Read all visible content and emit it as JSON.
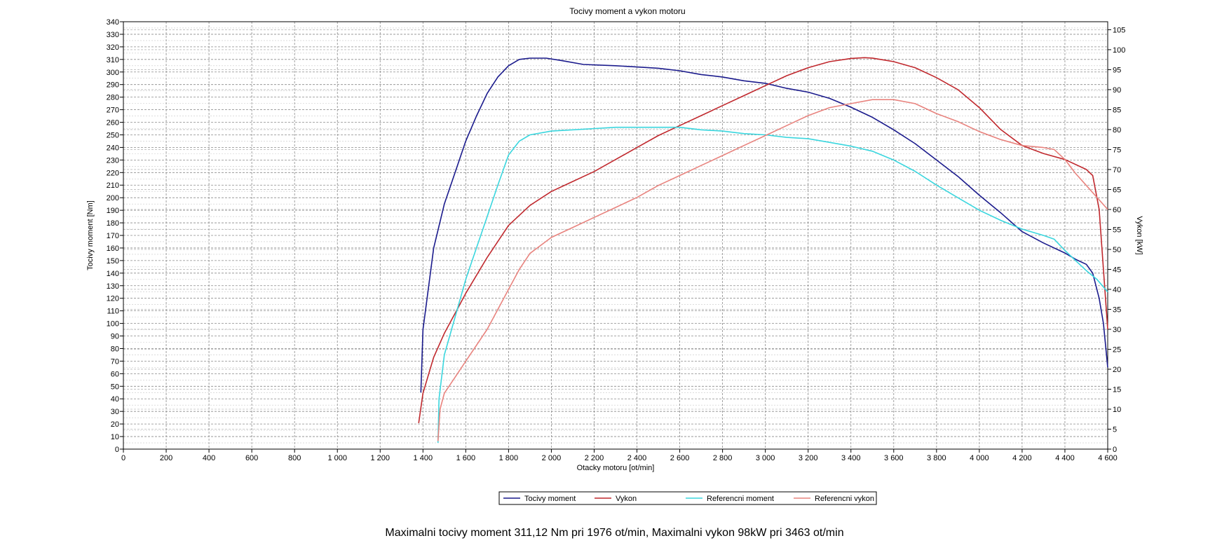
{
  "chart_data": {
    "type": "line",
    "title": "Tocivy moment a vykon motoru",
    "xlabel": "Otacky motoru [ot/min]",
    "ylabel": "Tocivy moment [Nm]",
    "y2label": "Vykon [kW]",
    "xlim": [
      0,
      4600
    ],
    "ylim": [
      0,
      340
    ],
    "y2lim": [
      0,
      107
    ],
    "x_ticks": [
      0,
      200,
      400,
      600,
      800,
      1000,
      1200,
      1400,
      1600,
      1800,
      2000,
      2200,
      2400,
      2600,
      2800,
      3000,
      3200,
      3400,
      3600,
      3800,
      4000,
      4200,
      4400,
      4600
    ],
    "x_tick_labels": [
      "0",
      "200",
      "400",
      "600",
      "800",
      "1 000",
      "1 200",
      "1 400",
      "1 600",
      "1 800",
      "2 000",
      "2 200",
      "2 400",
      "2 600",
      "2 800",
      "3 000",
      "3 200",
      "3 400",
      "3 600",
      "3 800",
      "4 000",
      "4 200",
      "4 400",
      "4 600"
    ],
    "y_ticks": [
      0,
      10,
      20,
      30,
      40,
      50,
      60,
      70,
      80,
      90,
      100,
      110,
      120,
      130,
      140,
      150,
      160,
      170,
      180,
      190,
      200,
      210,
      220,
      230,
      240,
      250,
      260,
      270,
      280,
      290,
      300,
      310,
      320,
      330,
      340
    ],
    "y2_ticks": [
      0,
      5,
      10,
      15,
      20,
      25,
      30,
      35,
      40,
      45,
      50,
      55,
      60,
      65,
      70,
      75,
      80,
      85,
      90,
      95,
      100,
      105
    ],
    "grid": true,
    "legend_position": "bottom",
    "series": [
      {
        "name": "Tocivy moment",
        "axis": "left",
        "color": "#1a1a8c",
        "points": [
          [
            1390,
            45
          ],
          [
            1400,
            95
          ],
          [
            1450,
            160
          ],
          [
            1500,
            195
          ],
          [
            1550,
            220
          ],
          [
            1600,
            245
          ],
          [
            1650,
            265
          ],
          [
            1700,
            283
          ],
          [
            1750,
            296
          ],
          [
            1800,
            305
          ],
          [
            1850,
            310
          ],
          [
            1900,
            311
          ],
          [
            1976,
            311
          ],
          [
            2050,
            309
          ],
          [
            2150,
            306
          ],
          [
            2300,
            305
          ],
          [
            2400,
            304
          ],
          [
            2500,
            303
          ],
          [
            2600,
            301
          ],
          [
            2700,
            298
          ],
          [
            2800,
            296
          ],
          [
            2900,
            293
          ],
          [
            3000,
            291
          ],
          [
            3100,
            287
          ],
          [
            3200,
            284
          ],
          [
            3300,
            279
          ],
          [
            3400,
            272
          ],
          [
            3500,
            264
          ],
          [
            3600,
            254
          ],
          [
            3700,
            243
          ],
          [
            3800,
            230
          ],
          [
            3900,
            217
          ],
          [
            4000,
            202
          ],
          [
            4100,
            188
          ],
          [
            4200,
            173
          ],
          [
            4300,
            164
          ],
          [
            4400,
            156
          ],
          [
            4450,
            151
          ],
          [
            4500,
            147
          ],
          [
            4530,
            140
          ],
          [
            4560,
            120
          ],
          [
            4580,
            100
          ],
          [
            4600,
            65
          ]
        ]
      },
      {
        "name": "Vykon",
        "axis": "right",
        "color": "#c0282d",
        "points": [
          [
            1380,
            6.5
          ],
          [
            1400,
            14
          ],
          [
            1450,
            23
          ],
          [
            1500,
            29
          ],
          [
            1550,
            34
          ],
          [
            1600,
            39
          ],
          [
            1700,
            48
          ],
          [
            1800,
            56
          ],
          [
            1900,
            61
          ],
          [
            2000,
            64.5
          ],
          [
            2100,
            67
          ],
          [
            2200,
            69.5
          ],
          [
            2300,
            72.5
          ],
          [
            2400,
            75.5
          ],
          [
            2500,
            78.5
          ],
          [
            2600,
            81
          ],
          [
            2700,
            83.5
          ],
          [
            2800,
            86
          ],
          [
            2900,
            88.5
          ],
          [
            3000,
            91
          ],
          [
            3100,
            93.5
          ],
          [
            3200,
            95.5
          ],
          [
            3300,
            97
          ],
          [
            3400,
            97.8
          ],
          [
            3463,
            98
          ],
          [
            3500,
            97.9
          ],
          [
            3600,
            97
          ],
          [
            3700,
            95.5
          ],
          [
            3800,
            93
          ],
          [
            3900,
            90
          ],
          [
            4000,
            85.5
          ],
          [
            4100,
            80
          ],
          [
            4200,
            76
          ],
          [
            4300,
            74
          ],
          [
            4400,
            72.5
          ],
          [
            4500,
            70
          ],
          [
            4530,
            68.5
          ],
          [
            4560,
            60
          ],
          [
            4580,
            45
          ],
          [
            4600,
            30
          ]
        ]
      },
      {
        "name": "Referencni moment",
        "axis": "left",
        "color": "#3ad6de",
        "points": [
          [
            1470,
            5
          ],
          [
            1475,
            40
          ],
          [
            1500,
            75
          ],
          [
            1550,
            105
          ],
          [
            1600,
            135
          ],
          [
            1650,
            160
          ],
          [
            1700,
            185
          ],
          [
            1750,
            210
          ],
          [
            1800,
            234
          ],
          [
            1850,
            245
          ],
          [
            1900,
            250
          ],
          [
            2000,
            253
          ],
          [
            2100,
            254
          ],
          [
            2200,
            255
          ],
          [
            2300,
            256
          ],
          [
            2400,
            256
          ],
          [
            2500,
            256
          ],
          [
            2600,
            256
          ],
          [
            2700,
            254
          ],
          [
            2800,
            253
          ],
          [
            2900,
            251
          ],
          [
            3000,
            250
          ],
          [
            3100,
            248
          ],
          [
            3200,
            247
          ],
          [
            3300,
            244
          ],
          [
            3400,
            241
          ],
          [
            3500,
            237
          ],
          [
            3600,
            230
          ],
          [
            3700,
            221
          ],
          [
            3800,
            210
          ],
          [
            3900,
            200
          ],
          [
            4000,
            190
          ],
          [
            4100,
            182
          ],
          [
            4200,
            175
          ],
          [
            4300,
            170
          ],
          [
            4350,
            167
          ],
          [
            4400,
            158
          ],
          [
            4450,
            150
          ],
          [
            4500,
            142
          ],
          [
            4550,
            135
          ],
          [
            4600,
            125
          ]
        ]
      },
      {
        "name": "Referencni vykon",
        "axis": "right",
        "color": "#e8837e",
        "points": [
          [
            1470,
            2
          ],
          [
            1480,
            10
          ],
          [
            1500,
            14
          ],
          [
            1550,
            18
          ],
          [
            1600,
            22
          ],
          [
            1700,
            30
          ],
          [
            1800,
            40
          ],
          [
            1850,
            45
          ],
          [
            1900,
            49
          ],
          [
            2000,
            53
          ],
          [
            2100,
            55.5
          ],
          [
            2200,
            58
          ],
          [
            2300,
            60.5
          ],
          [
            2400,
            63
          ],
          [
            2500,
            66
          ],
          [
            2600,
            68.5
          ],
          [
            2700,
            71
          ],
          [
            2800,
            73.5
          ],
          [
            2900,
            76
          ],
          [
            3000,
            78.5
          ],
          [
            3100,
            81
          ],
          [
            3200,
            83.5
          ],
          [
            3300,
            85.5
          ],
          [
            3400,
            86.5
          ],
          [
            3500,
            87.5
          ],
          [
            3600,
            87.5
          ],
          [
            3700,
            86.5
          ],
          [
            3800,
            84
          ],
          [
            3900,
            82
          ],
          [
            4000,
            79.5
          ],
          [
            4100,
            77.5
          ],
          [
            4200,
            76
          ],
          [
            4300,
            75.5
          ],
          [
            4350,
            75
          ],
          [
            4400,
            72.5
          ],
          [
            4450,
            69
          ],
          [
            4500,
            66
          ],
          [
            4550,
            63
          ],
          [
            4600,
            60
          ]
        ]
      }
    ]
  },
  "summary_text": "Maximalni tocivy moment 311,12 Nm pri 1976 ot/min,  Maximalni vykon 98kW pri 3463 ot/min"
}
